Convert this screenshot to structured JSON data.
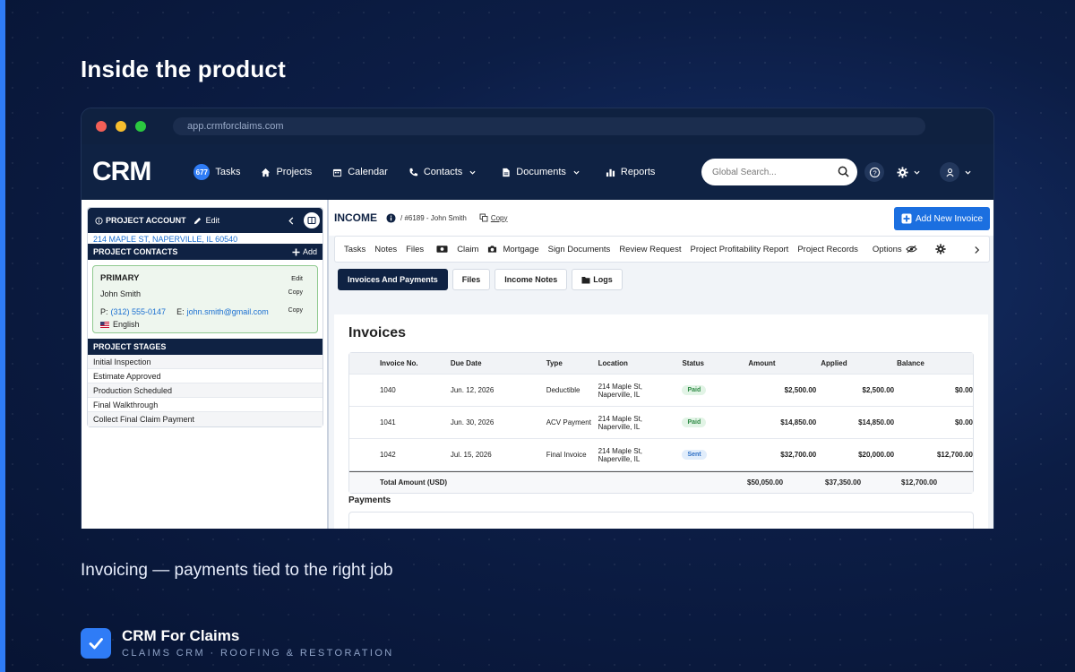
{
  "slide": {
    "headline": "Inside the product",
    "caption": "Invoicing — payments tied to the right job",
    "brand_name": "CRM For Claims",
    "brand_tagline": "CLAIMS CRM · ROOFING & RESTORATION",
    "accent": "#2f7cf6"
  },
  "browser": {
    "url": "app.crmforclaims.com"
  },
  "nav": {
    "logo": "CRM",
    "tasks_count": "677",
    "items": [
      "Tasks",
      "Projects",
      "Calendar",
      "Contacts",
      "Documents",
      "Reports"
    ],
    "search_placeholder": "Global Search..."
  },
  "sidebar": {
    "title": "PROJECT ACCOUNT",
    "edit": "Edit",
    "address": "214 MAPLE ST, NAPERVILLE, IL 60540",
    "contacts_title": "PROJECT CONTACTS",
    "add": "Add",
    "contact": {
      "role": "PRIMARY",
      "edit": "Edit",
      "name": "John Smith",
      "copy": "Copy",
      "phone_label": "P:",
      "phone": "(312) 555-0147",
      "email_label": "E:",
      "email": "john.smith@gmail.com",
      "copy2": "Copy",
      "language": "English"
    },
    "stages_title": "PROJECT STAGES",
    "stages": [
      "Initial Inspection",
      "Estimate Approved",
      "Production Scheduled",
      "Final Walkthrough",
      "Collect Final Claim Payment"
    ]
  },
  "main": {
    "title": "INCOME",
    "crumb": "/ #6189 - John Smith",
    "copy": "Copy",
    "add_button": "Add New Invoice",
    "subnav": [
      "Tasks",
      "Notes",
      "Files",
      "Claim",
      "Mortgage",
      "Sign Documents",
      "Review Request",
      "Project Profitability Report",
      "Project Records",
      "Options"
    ],
    "tabs": [
      "Invoices And Payments",
      "Files",
      "Income Notes",
      "Logs"
    ],
    "invoices_title": "Invoices",
    "columns": [
      "Invoice No.",
      "Due Date",
      "Type",
      "Location",
      "Status",
      "Amount",
      "Applied",
      "Balance"
    ],
    "rows": [
      {
        "no": "1040",
        "due": "Jun. 12, 2026",
        "type": "Deductible",
        "loc1": "214 Maple St,",
        "loc2": "Naperville, IL",
        "status": "Paid",
        "amount": "$2,500.00",
        "applied": "$2,500.00",
        "balance": "$0.00"
      },
      {
        "no": "1041",
        "due": "Jun. 30, 2026",
        "type": "ACV Payment",
        "loc1": "214 Maple St,",
        "loc2": "Naperville, IL",
        "status": "Paid",
        "amount": "$14,850.00",
        "applied": "$14,850.00",
        "balance": "$0.00"
      },
      {
        "no": "1042",
        "due": "Jul. 15, 2026",
        "type": "Final Invoice",
        "loc1": "214 Maple St,",
        "loc2": "Naperville, IL",
        "status": "Sent",
        "amount": "$32,700.00",
        "applied": "$20,000.00",
        "balance": "$12,700.00"
      }
    ],
    "total": {
      "label": "Total Amount (USD)",
      "amount": "$50,050.00",
      "applied": "$37,350.00",
      "balance": "$12,700.00"
    },
    "payments_title": "Payments"
  }
}
